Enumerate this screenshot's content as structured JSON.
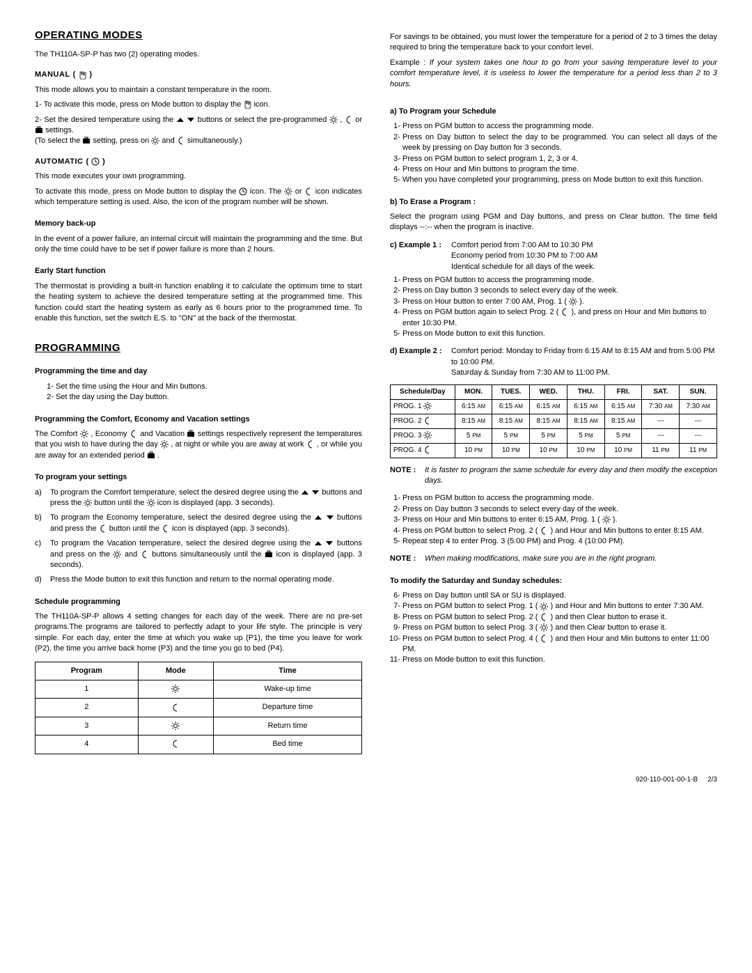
{
  "footer": {
    "doc": "920-110-001-00-1-B",
    "page": "2/3"
  },
  "left": {
    "heading1": "OPERATING MODES",
    "intro1": "The TH110A-SP-P has two (2) operating modes.",
    "manual_label": "MANUAL",
    "manual_p1": "This mode allows you to maintain a constant temperature in the room.",
    "manual_s1a": "1- To activate this mode, press on Mode button to display the ",
    "manual_s1b": " icon.",
    "manual_s2a": "2- Set the desired temperature using the ",
    "manual_s2b": " buttons or select the pre-programmed ",
    "manual_s2c": " or ",
    "manual_s2d": " settings.",
    "manual_s2e": "(To select the ",
    "manual_s2f": " setting, press on ",
    "manual_s2g": " and ",
    "manual_s2h": " simultaneously.)",
    "auto_label": "AUTOMATIC",
    "auto_p1": "This mode executes your own programming.",
    "auto_p2a": "To activate this mode, press on Mode button to display the ",
    "auto_p2b": " icon. The ",
    "auto_p2c": " or ",
    "auto_p2d": " icon indicates which temperature setting is used. Also, the icon of the program number will be shown.",
    "mem_h": "Memory back-up",
    "mem_p": "In the event of a power failure, an internal circuit will maintain the programming and the time. But only the time could have to be set if power failure is more than 2 hours.",
    "early_h": "Early Start function",
    "early_p": "The thermostat is providing a built-in function enabling it to calculate the optimum time to start the heating system to achieve the desired temperature setting at the programmed time. This function could start the heating system as early as 6 hours prior to the programmed time. To enable this function, set the switch E.S. to \"ON\" at the back of the thermostat.",
    "heading2": "PROGRAMMING",
    "ptd_h": "Programming the time and day",
    "ptd_1": "Set the time using the Hour and Min buttons.",
    "ptd_2": "Set the day using the Day button.",
    "pcev_h": "Programming the Comfort, Economy and Vacation settings",
    "pcev_p1a": "The Comfort ",
    "pcev_p1b": " , Economy ",
    "pcev_p1c": " and Vacation ",
    "pcev_p1d": " settings respectively represent the temperatures that you wish to have during the day ",
    "pcev_p1e": ", at night or while you are away at work ",
    "pcev_p1f": " , or while you are away for an extended period ",
    "pcev_p1g": " .",
    "tps_h": "To program your settings",
    "tps_a1": "To program the Comfort temperature, select the desired degree using the ",
    "tps_a2": " buttons and press the ",
    "tps_a3": " button until the ",
    "tps_a4": " icon is displayed (app. 3 seconds).",
    "tps_b1": "To program the Economy temperature, select the desired degree using the ",
    "tps_b2": " buttons and press the ",
    "tps_b3": " button until the ",
    "tps_b4": " icon is displayed (app. 3 seconds).",
    "tps_c1": "To program the Vacation temperature, select the desired degree using the ",
    "tps_c2": " buttons and press on the ",
    "tps_c3": " and ",
    "tps_c4": " buttons simultaneously until the ",
    "tps_c5": " icon is displayed (app. 3 seconds).",
    "tps_d": "Press the Mode button to exit this function and return to the normal operating mode.",
    "sch_h": "Schedule programming",
    "sch_p": "The TH110A-SP-P allows 4 setting changes for each day of the week. There are no pre-set programs.The programs are tailored to perfectly adapt to your life style. The principle is very simple. For each day, enter the time at which you wake up (P1), the time you leave for work (P2), the time you arrive back home (P3) and the time you go to bed (P4).",
    "prog_table": {
      "headers": [
        "Program",
        "Mode",
        "Time"
      ],
      "rows": [
        {
          "num": "1",
          "icon": "sun",
          "time": "Wake-up time"
        },
        {
          "num": "2",
          "icon": "moon",
          "time": "Departure time"
        },
        {
          "num": "3",
          "icon": "sun",
          "time": "Return time"
        },
        {
          "num": "4",
          "icon": "moon",
          "time": "Bed time"
        }
      ]
    }
  },
  "right": {
    "savings_p": "For savings to be obtained, you must lower the temperature for a period of 2 to 3 times the delay required to bring the temperature back to your comfort level.",
    "example_lead": "Example : ",
    "example_it": "If your system takes one hour to go from your saving temperature level to your comfort temperature level, it is useless to lower the temperature for a period less than 2 to 3 hours.",
    "a_h": "a) To Program your Schedule",
    "a1": "Press on PGM button to access the programming mode.",
    "a2": "Press on Day button to select the day to be programmed. You can select all days of the week by pressing on Day button for 3 seconds.",
    "a3": "Press on PGM button to select program 1, 2, 3 or 4.",
    "a4": "Press on Hour and Min buttons to program the time.",
    "a5": "When you have completed your programming, press on Mode button to exit this function.",
    "b_h": "b) To Erase a Program :",
    "b_p": "Select the program using PGM and Day buttons, and press on Clear button. The time field displays --:-- when the program is inactive.",
    "c_lbl": "c) Example 1 :",
    "c_txt": "Comfort period from 7:00 AM to 10:30 PM\nEconomy period from 10:30 PM to 7:00 AM\nIdentical schedule for all days of the week.",
    "c1": "Press on PGM button to access the programming mode.",
    "c2": "Press on Day button 3 seconds to select every day of the week.",
    "c3a": "Press on Hour button to enter 7:00 AM, Prog. 1 ( ",
    "c3b": " ).",
    "c4a": "Press on PGM button again to select Prog. 2 ( ",
    "c4b": " ), and press on Hour and Min buttons to enter 10:30 PM.",
    "c5": "Press on Mode button to exit this function.",
    "d_lbl": "d) Example 2 :",
    "d_txt": "Comfort period: Monday to Friday from 6:15 AM to 8:15 AM and from 5:00 PM to 10:00 PM.\nSaturday & Sunday from 7:30 AM to 11:00 PM.",
    "sched": {
      "header": [
        "Schedule/Day",
        "MON.",
        "TUES.",
        "WED.",
        "THU.",
        "FRI.",
        "SAT.",
        "SUN."
      ],
      "rows": [
        {
          "label": "PROG. 1",
          "icon": "sun",
          "cells": [
            "6:15",
            "6:15",
            "6:15",
            "6:15",
            "6:15",
            "7:30",
            "7:30"
          ],
          "ampm": "AM"
        },
        {
          "label": "PROG. 2",
          "icon": "moon",
          "cells": [
            "8:15",
            "8:15",
            "8:15",
            "8:15",
            "8:15",
            "---",
            "---"
          ],
          "ampm": "AM"
        },
        {
          "label": "PROG. 3",
          "icon": "sun",
          "cells": [
            "5",
            "5",
            "5",
            "5",
            "5",
            "---",
            "---"
          ],
          "ampm": "PM"
        },
        {
          "label": "PROG. 4",
          "icon": "moon",
          "cells": [
            "10",
            "10",
            "10",
            "10",
            "10",
            "11",
            "11"
          ],
          "ampm": "PM"
        }
      ]
    },
    "note1_l": "NOTE :",
    "note1_t": "It is faster to program the same schedule for every day and then modify the exception days.",
    "d1": "Press on PGM button to access the programming mode.",
    "d2": "Press on Day button 3 seconds to select every day of the week.",
    "d3a": "Press on Hour and Min buttons to enter 6:15 AM, Prog. 1 ( ",
    "d3b": ").",
    "d4a": "Press on PGM button to select Prog. 2 ( ",
    "d4b": " ) and Hour and Min buttons to enter 8:15 AM.",
    "d5": "Repeat step 4 to enter Prog. 3 (5:00 PM) and Prog. 4 (10:00 PM).",
    "note2_l": "NOTE :",
    "note2_t": "When making modifications, make sure you are in the right program.",
    "mod_h": "To modify the Saturday and Sunday schedules:",
    "m6": "Press on Day button until SA or SU is displayed.",
    "m7a": "Press on PGM button to select Prog. 1 ( ",
    "m7b": " ) and Hour and Min buttons to enter 7:30 AM.",
    "m8a": "Press on PGM button to select Prog. 2 ( ",
    "m8b": " ) and then Clear button to erase it.",
    "m9a": "Press on PGM button to select Prog. 3 ( ",
    "m9b": " ) and then Clear button  to erase it.",
    "m10a": "Press on PGM button to select Prog. 4 ( ",
    "m10b": " ) and then Hour and  Min buttons to enter 11:00 PM.",
    "m11": "Press on Mode button to exit this function."
  }
}
